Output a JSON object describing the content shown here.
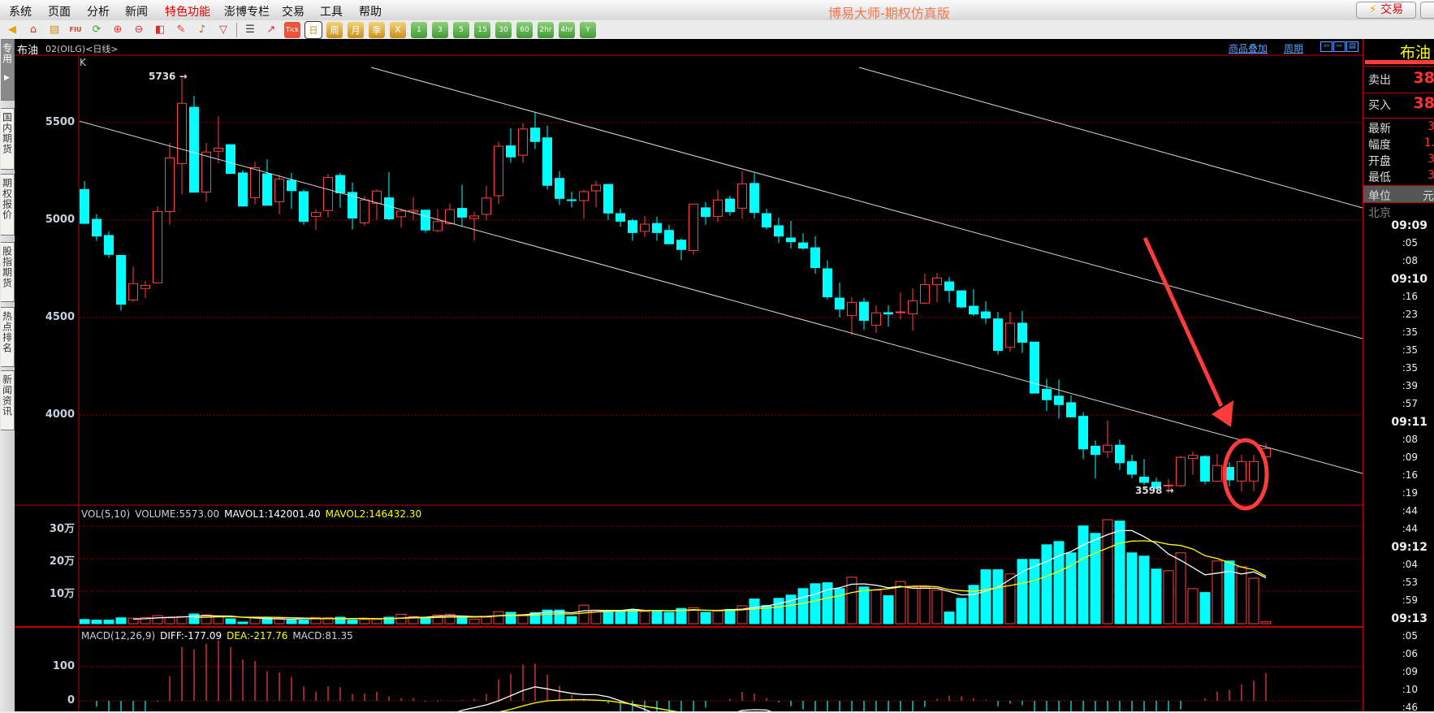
{
  "menu": [
    "系统",
    "页面",
    "分析",
    "新闻",
    "特色功能",
    "澎博专栏",
    "交易",
    "工具",
    "帮助"
  ],
  "menu_highlight_index": 4,
  "app_title": "博易大师-期权仿真版",
  "trade_button": {
    "icon": "lightning-icon",
    "label": "交易"
  },
  "toolbar": {
    "icons": [
      "back-arrow-icon",
      "home-icon",
      "document-icon",
      "fiu-icon",
      "refresh-icon",
      "zoom-in-icon",
      "zoom-out-icon",
      "layers-icon",
      "pencil-icon",
      "bell-icon",
      "funnel-icon",
      "table-icon",
      "chart-icon"
    ],
    "tick_label": "Tick",
    "periods": [
      "日",
      "周",
      "月",
      "季",
      "X"
    ],
    "selected_period": "日",
    "minutes": [
      "1",
      "3",
      "5",
      "15",
      "30",
      "60",
      "2hr",
      "4hr",
      "Y"
    ]
  },
  "left_tabs": [
    "专用",
    "国内期货",
    "期权报价",
    "股指期货",
    "热点排名",
    "新闻资讯"
  ],
  "header": {
    "symbol": "布油",
    "code": "02(OILG)<日线>",
    "overlay_link": "商品叠加",
    "period_link": "周期",
    "nav_icons": [
      "arrow-left-icon",
      "arrow-right-icon",
      "layout-icon"
    ]
  },
  "price_panel": {
    "label": "K",
    "yticks": [
      "5500",
      "5000",
      "4500",
      "4000"
    ],
    "high_annotation": "5736",
    "low_annotation": "3598"
  },
  "colors": {
    "up": "#ff4040",
    "down": "#00ffff",
    "grid": "#8b0000",
    "ma1": "#ffffff",
    "ma2": "#ffff00",
    "annotation": "#ff3b3b"
  },
  "volume_panel": {
    "title": "VOL(5,10)",
    "volume": "VOLUME:5573.00",
    "mavol1": "MAVOL1:142001.40",
    "mavol2": "MAVOL2:146432.30",
    "yticks": [
      "30万",
      "20万",
      "10万"
    ]
  },
  "macd_panel": {
    "title": "MACD(12,26,9)",
    "diff": "DIFF:-177.09",
    "dea": "DEA:-217.76",
    "macd": "MACD:81.35",
    "yticks": [
      "100",
      "0"
    ]
  },
  "right_panel": {
    "name": "布油",
    "sell_label": "卖出",
    "sell_value": "38",
    "buy_label": "买入",
    "buy_value": "38",
    "stats": [
      {
        "label": "最新",
        "value": "3"
      },
      {
        "label": "幅度",
        "value": "1."
      },
      {
        "label": "开盘",
        "value": "3"
      },
      {
        "label": "最低",
        "value": "3"
      }
    ],
    "unit_label": "单位",
    "unit_value": "元",
    "city": "北京",
    "ticks": [
      "09:09",
      ":05",
      ":08",
      "09:10",
      ":16",
      ":23",
      ":35",
      ":35",
      ":35",
      ":39",
      ":57",
      "09:11",
      ":08",
      ":09",
      ":16",
      ":19",
      ":44",
      ":44",
      "09:12",
      ":04",
      ":53",
      ":59",
      "09:13",
      ":05",
      ":06",
      ":09",
      ":10",
      ":46"
    ]
  },
  "chart_data": {
    "type": "candlestick",
    "price_ylim": [
      3500,
      5850
    ],
    "candles_ohlc": [
      [
        5157,
        5201,
        4979,
        4983
      ],
      [
        5004,
        5031,
        4893,
        4918
      ],
      [
        4921,
        4942,
        4806,
        4824
      ],
      [
        4819,
        4819,
        4535,
        4568
      ],
      [
        4590,
        4761,
        4581,
        4674
      ],
      [
        4649,
        4688,
        4599,
        4665
      ],
      [
        4678,
        5071,
        4678,
        5044
      ],
      [
        5044,
        5396,
        4976,
        5319
      ],
      [
        5290,
        5736,
        5132,
        5599
      ],
      [
        5579,
        5637,
        5143,
        5143
      ],
      [
        5144,
        5396,
        5093,
        5349
      ],
      [
        5353,
        5533,
        5290,
        5369
      ],
      [
        5387,
        5387,
        5239,
        5239
      ],
      [
        5242,
        5257,
        5068,
        5072
      ],
      [
        5115,
        5300,
        5081,
        5269
      ],
      [
        5237,
        5312,
        5076,
        5076
      ],
      [
        5094,
        5231,
        5028,
        5211
      ],
      [
        5204,
        5242,
        5057,
        5151
      ],
      [
        5146,
        5157,
        4976,
        4993
      ],
      [
        5019,
        5057,
        4949,
        5039
      ],
      [
        5049,
        5237,
        5014,
        5219
      ],
      [
        5229,
        5242,
        5064,
        5140
      ],
      [
        5142,
        5192,
        4951,
        5010
      ],
      [
        4986,
        5124,
        4972,
        5103
      ],
      [
        5086,
        5156,
        5001,
        5149
      ],
      [
        5114,
        5247,
        4999,
        5006
      ],
      [
        5017,
        5057,
        4961,
        5046
      ],
      [
        5042,
        5118,
        4999,
        5050
      ],
      [
        5051,
        5051,
        4936,
        4949
      ],
      [
        4946,
        5056,
        4936,
        4992
      ],
      [
        4981,
        5085,
        4981,
        5054
      ],
      [
        5060,
        5181,
        4971,
        5015
      ],
      [
        5008,
        5043,
        4894,
        5021
      ],
      [
        5029,
        5176,
        4999,
        5113
      ],
      [
        5125,
        5401,
        5082,
        5379
      ],
      [
        5381,
        5472,
        5294,
        5324
      ],
      [
        5333,
        5497,
        5294,
        5467
      ],
      [
        5472,
        5550,
        5365,
        5403
      ],
      [
        5422,
        5485,
        5157,
        5178
      ],
      [
        5214,
        5251,
        5078,
        5111
      ],
      [
        5104,
        5147,
        5065,
        5100
      ],
      [
        5100,
        5154,
        5007,
        5146
      ],
      [
        5150,
        5201,
        5065,
        5179
      ],
      [
        5183,
        5183,
        4999,
        5036
      ],
      [
        5033,
        5060,
        4965,
        4994
      ],
      [
        4997,
        5008,
        4894,
        4936
      ],
      [
        4942,
        5022,
        4914,
        4979
      ],
      [
        4983,
        5018,
        4894,
        4936
      ],
      [
        4947,
        4976,
        4878,
        4878
      ],
      [
        4897,
        4906,
        4794,
        4849
      ],
      [
        4844,
        5082,
        4822,
        5082
      ],
      [
        5063,
        5094,
        4976,
        5018
      ],
      [
        5019,
        5154,
        4989,
        5103
      ],
      [
        5108,
        5125,
        5022,
        5043
      ],
      [
        5061,
        5250,
        5008,
        5186
      ],
      [
        5188,
        5240,
        5008,
        5039
      ],
      [
        5033,
        5058,
        4951,
        4964
      ],
      [
        4971,
        5013,
        4883,
        4918
      ],
      [
        4908,
        4996,
        4854,
        4889
      ],
      [
        4883,
        4933,
        4847,
        4856
      ],
      [
        4858,
        4917,
        4725,
        4756
      ],
      [
        4750,
        4792,
        4592,
        4606
      ],
      [
        4600,
        4679,
        4500,
        4543
      ],
      [
        4510,
        4604,
        4410,
        4578
      ],
      [
        4579,
        4600,
        4438,
        4485
      ],
      [
        4461,
        4563,
        4421,
        4524
      ],
      [
        4525,
        4563,
        4454,
        4518
      ],
      [
        4525,
        4629,
        4489,
        4529
      ],
      [
        4519,
        4650,
        4433,
        4586
      ],
      [
        4574,
        4725,
        4569,
        4669
      ],
      [
        4669,
        4729,
        4579,
        4703
      ],
      [
        4683,
        4708,
        4576,
        4639
      ],
      [
        4637,
        4640,
        4547,
        4554
      ],
      [
        4558,
        4646,
        4508,
        4518
      ],
      [
        4529,
        4583,
        4468,
        4497
      ],
      [
        4493,
        4529,
        4310,
        4331
      ],
      [
        4347,
        4529,
        4326,
        4471
      ],
      [
        4471,
        4534,
        4318,
        4373
      ],
      [
        4374,
        4374,
        4112,
        4112
      ],
      [
        4132,
        4185,
        4020,
        4078
      ],
      [
        4097,
        4182,
        3982,
        4053
      ],
      [
        4063,
        4101,
        3990,
        3990
      ],
      [
        3993,
        4014,
        3773,
        3826
      ],
      [
        3840,
        3870,
        3675,
        3797
      ],
      [
        3811,
        3972,
        3780,
        3845
      ],
      [
        3845,
        3874,
        3717,
        3755
      ],
      [
        3761,
        3796,
        3675,
        3696
      ],
      [
        3681,
        3773,
        3640,
        3654
      ],
      [
        3655,
        3678,
        3619,
        3625
      ],
      [
        3639,
        3672,
        3598,
        3640
      ],
      [
        3637,
        3790,
        3630,
        3783
      ],
      [
        3777,
        3812,
        3693,
        3793
      ],
      [
        3787,
        3794,
        3643,
        3660
      ],
      [
        3660,
        3800,
        3660,
        3741
      ],
      [
        3731,
        3758,
        3633,
        3667
      ],
      [
        3661,
        3796,
        3609,
        3761
      ],
      [
        3661,
        3796,
        3609,
        3761
      ],
      [
        3786,
        3854,
        3776,
        3828
      ]
    ],
    "volume_wan": [
      1.3,
      1.1,
      1.1,
      1.8,
      1.7,
      1.9,
      2.5,
      1.8,
      2.2,
      3.0,
      2.7,
      2.2,
      1.5,
      0.5,
      1.8,
      1.9,
      1.7,
      1.1,
      1.1,
      1.9,
      1.9,
      2.0,
      1.1,
      1.3,
      1.3,
      2.0,
      2.9,
      2.2,
      1.6,
      2.7,
      2.9,
      2.3,
      1.4,
      2.0,
      3.7,
      3.5,
      2.8,
      3.4,
      4.2,
      4.2,
      2.2,
      5.7,
      4.2,
      4.1,
      4.1,
      4.3,
      3.7,
      4.1,
      3.5,
      4.7,
      4.9,
      3.5,
      3.9,
      4.4,
      5.5,
      7.6,
      5.6,
      7.8,
      8.8,
      10.8,
      12.3,
      12.6,
      10.8,
      14.3,
      11.3,
      10.3,
      8.6,
      13.0,
      11.3,
      11.3,
      10.3,
      3.6,
      7.8,
      11.8,
      16.6,
      16.6,
      15.3,
      19.8,
      19.8,
      24.3,
      25.3,
      21.8,
      30.1,
      27.8,
      32.0,
      31.6,
      21.8,
      20.8,
      16.8,
      16.3,
      21.8,
      10.8,
      9.6,
      19.3,
      19.3,
      17.5,
      14.0,
      0.56
    ],
    "volume_ylim_wan": [
      0,
      30
    ],
    "macd_hist": [
      0,
      -17,
      -40,
      -45,
      -50,
      -40,
      -2,
      72,
      158,
      151,
      167,
      177,
      158,
      121,
      117,
      87,
      84,
      70,
      42,
      27,
      42,
      40,
      20,
      22,
      27,
      13,
      8,
      8,
      -2,
      -2,
      0,
      2,
      6,
      20,
      63,
      79,
      106,
      109,
      77,
      44,
      17,
      7,
      0,
      -8,
      -35,
      -45,
      -50,
      -50,
      -45,
      -40,
      -40,
      -20,
      0,
      6,
      26,
      22,
      8,
      -4,
      -16,
      -25,
      -40,
      -60,
      -70,
      -70,
      -65,
      -60,
      -55,
      -45,
      -40,
      -18,
      6,
      15,
      13,
      8,
      3,
      -16,
      -8,
      -13,
      -50,
      -60,
      -70,
      -80,
      -90,
      -100,
      -100,
      -100,
      -90,
      -80,
      -60,
      -40,
      -25,
      0,
      8,
      27,
      32,
      48,
      60,
      81.35
    ],
    "macd_diff": [
      null,
      null,
      null,
      null,
      null,
      null,
      null,
      null,
      null,
      null,
      null,
      null,
      null,
      null,
      null,
      null,
      null,
      null,
      null,
      null,
      null,
      null,
      null,
      null,
      null,
      null,
      null,
      null,
      null,
      null,
      -40,
      -28,
      -20,
      -12,
      0,
      15,
      30,
      41,
      35,
      28,
      22,
      18,
      18,
      12,
      0,
      -12,
      -25,
      -40,
      null,
      null,
      null,
      null,
      null,
      -40,
      -28,
      -26,
      -27,
      -40,
      null,
      null,
      null,
      null,
      null,
      null,
      null,
      null,
      null,
      null,
      null,
      null,
      null,
      null,
      null,
      null,
      null,
      null,
      null,
      null,
      null,
      null,
      null,
      null,
      null,
      null,
      null,
      null,
      null,
      null,
      null,
      null,
      null,
      null,
      null,
      null,
      null,
      null,
      null,
      null
    ],
    "macd_dea": [
      null,
      null,
      null,
      null,
      null,
      null,
      null,
      null,
      null,
      null,
      null,
      null,
      null,
      null,
      null,
      null,
      null,
      null,
      null,
      null,
      null,
      null,
      null,
      null,
      null,
      null,
      null,
      null,
      null,
      null,
      null,
      null,
      null,
      -40,
      -33,
      -25,
      -15,
      -6,
      0,
      2,
      3,
      3,
      2,
      0,
      -5,
      -10,
      -16,
      -22,
      -28,
      -34,
      -40,
      null,
      null,
      null,
      null,
      null,
      null,
      null,
      null,
      null,
      null,
      null,
      null,
      null,
      null,
      null,
      null,
      null,
      null,
      null,
      null,
      null,
      null,
      null,
      null,
      null,
      null,
      null,
      null,
      null,
      null,
      null,
      null,
      null,
      null,
      null,
      null,
      null,
      null,
      null,
      null,
      null,
      null,
      null,
      null,
      null,
      null,
      null
    ],
    "macd_ylim": [
      -30,
      200
    ]
  }
}
